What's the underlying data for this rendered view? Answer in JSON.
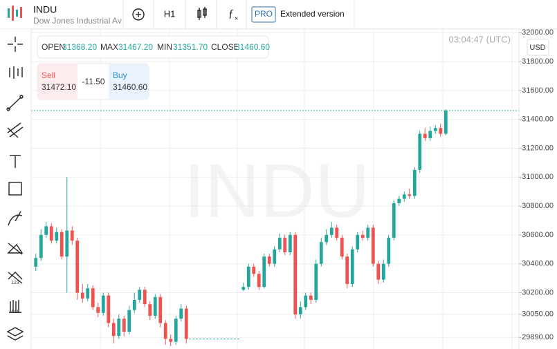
{
  "header": {
    "symbol": "INDU",
    "name": "Dow Jones Industrial Ave",
    "timeframe": "H1",
    "pro": "PRO",
    "extended": "Extended version"
  },
  "ohlc": {
    "open_label": "OPEN",
    "open": "31368.20",
    "max_label": "MAX",
    "max": "31467.20",
    "min_label": "MIN",
    "min": "31351.70",
    "close_label": "CLOSE",
    "close": "31460.60"
  },
  "quote": {
    "sell_label": "Sell",
    "sell": "31472.10",
    "change": "-11.50",
    "buy_label": "Buy",
    "buy": "31460.60"
  },
  "time": "03:04:47 (UTC)",
  "currency": "USD",
  "chart_data": {
    "type": "candlestick",
    "up_color": "#26a69a",
    "down_color": "#ef5350",
    "last_color": "#26a69a",
    "ylim": [
      29810,
      32035
    ],
    "yticks": [
      {
        "value": 32000,
        "label": "32000.00"
      },
      {
        "value": 31800,
        "label": "31800.00"
      },
      {
        "value": 31600,
        "label": "31600.00"
      },
      {
        "value": 31400,
        "label": "31400.00"
      },
      {
        "value": 31200,
        "label": "31200.00"
      },
      {
        "value": 31000,
        "label": "31000.00"
      },
      {
        "value": 30800,
        "label": "30800.00"
      },
      {
        "value": 30600,
        "label": "30600.00"
      },
      {
        "value": 30400,
        "label": "30400.00"
      },
      {
        "value": 30200,
        "label": "30200.00"
      },
      {
        "value": 30050,
        "label": "30050.00"
      },
      {
        "value": 29890,
        "label": "29890.00"
      }
    ],
    "open": [
      30380,
      30440,
      30600,
      30660,
      30560,
      30620,
      30450,
      30630,
      30560,
      30200,
      30160,
      30230,
      30100,
      30060,
      30180,
      29990,
      29900,
      30020,
      29930,
      30080,
      30150,
      30220,
      30120,
      30040,
      30170,
      29990,
      29880,
      29860,
      30020,
      30090,
      null,
      null,
      null,
      null,
      null,
      null,
      null,
      null,
      null,
      null,
      30220,
      30240,
      30380,
      30330,
      30240,
      30450,
      30400,
      30500,
      30580,
      30480,
      30600,
      30050,
      30100,
      30180,
      30150,
      30400,
      30550,
      30600,
      30650,
      30580,
      30450,
      30260,
      30500,
      30600,
      30580,
      30650,
      30400,
      30290,
      30400,
      30580,
      30820,
      30850,
      30880,
      30870,
      31050,
      31300,
      31270,
      31320,
      31340,
      31300
    ],
    "high": [
      30470,
      30640,
      30690,
      30680,
      30650,
      30640,
      31000,
      30660,
      30580,
      30260,
      30260,
      30250,
      30130,
      30200,
      30200,
      30020,
      30050,
      30040,
      30110,
      30200,
      30240,
      30240,
      30140,
      30190,
      30190,
      30010,
      29910,
      30040,
      30120,
      30110,
      null,
      null,
      null,
      null,
      null,
      null,
      null,
      null,
      null,
      null,
      30270,
      30400,
      30400,
      30350,
      30470,
      30470,
      30520,
      30610,
      30600,
      30620,
      30620,
      30140,
      30200,
      30200,
      30430,
      30580,
      30640,
      30690,
      30670,
      30600,
      30470,
      30520,
      30620,
      30630,
      30670,
      30670,
      30420,
      30430,
      30600,
      30840,
      30870,
      30900,
      30920,
      31070,
      31320,
      31340,
      31350,
      31360,
      31370,
      31470
    ],
    "low": [
      30350,
      30420,
      30580,
      30540,
      30540,
      30430,
      30200,
      30530,
      30150,
      30130,
      30140,
      30080,
      30030,
      30040,
      29960,
      29850,
      29880,
      29900,
      29910,
      30060,
      30130,
      30100,
      30010,
      30020,
      29960,
      29840,
      29830,
      29840,
      30000,
      29850,
      null,
      null,
      null,
      null,
      null,
      null,
      null,
      null,
      null,
      null,
      30210,
      30220,
      30310,
      30220,
      30230,
      30380,
      30380,
      30480,
      30460,
      30460,
      30020,
      30020,
      30080,
      30120,
      30130,
      30380,
      30530,
      30580,
      30560,
      30430,
      30230,
      30240,
      30480,
      30560,
      30560,
      30380,
      30260,
      30270,
      30380,
      30560,
      30800,
      30830,
      30850,
      30850,
      31030,
      31250,
      31250,
      31300,
      31280,
      31290
    ],
    "close": [
      30440,
      30600,
      30660,
      30560,
      30620,
      30450,
      30630,
      30560,
      30200,
      30160,
      30230,
      30100,
      30060,
      30180,
      29990,
      29900,
      30020,
      29930,
      30080,
      30150,
      30220,
      30120,
      30040,
      30170,
      29990,
      29880,
      29860,
      30020,
      30090,
      29880,
      null,
      null,
      null,
      null,
      null,
      null,
      null,
      null,
      null,
      null,
      30240,
      30380,
      30330,
      30240,
      30450,
      30400,
      30500,
      30580,
      30480,
      30600,
      30050,
      30100,
      30180,
      30150,
      30400,
      30550,
      30600,
      30650,
      30580,
      30450,
      30260,
      30500,
      30600,
      30580,
      30650,
      30400,
      30290,
      30400,
      30580,
      30820,
      30850,
      30880,
      30870,
      31050,
      31300,
      31270,
      31320,
      31340,
      31300,
      31460
    ]
  }
}
